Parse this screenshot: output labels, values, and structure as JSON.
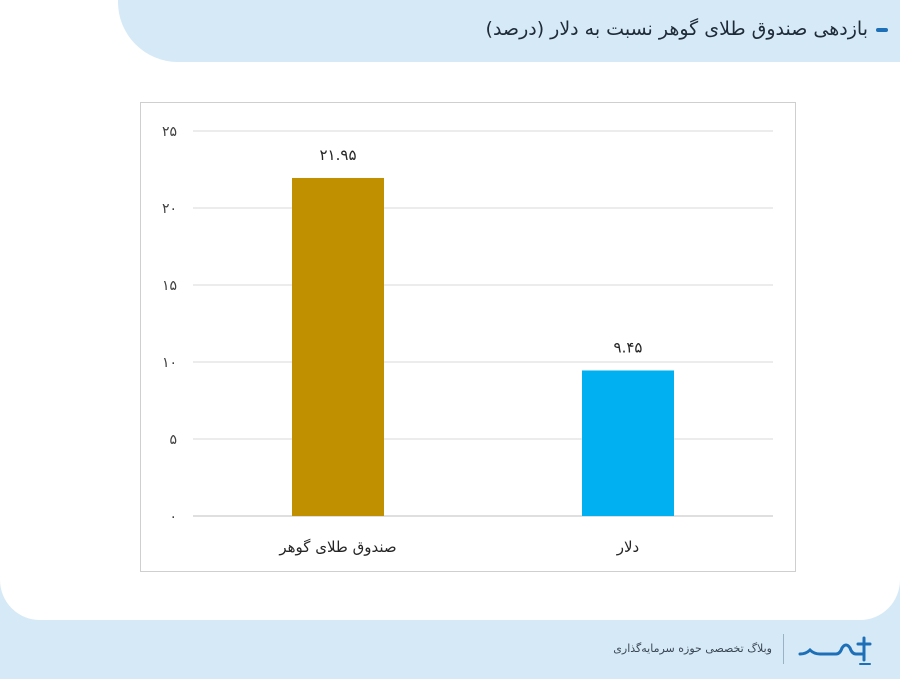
{
  "header": {
    "title": "بازدهی صندوق طلای گوهر نسبت به دلار (درصد)"
  },
  "footer": {
    "tagline": "وبلاگ تخصصی حوزه سرمایه‌گذاری",
    "logo_icon": "sarmayeh-logo"
  },
  "colors": {
    "gold_bar": "#c09000",
    "dollar_bar": "#00b0f0",
    "accent": "#1d6fb8",
    "background_band": "#d6e9f6"
  },
  "chart_data": {
    "type": "bar",
    "title": "",
    "xlabel": "",
    "ylabel": "",
    "categories": [
      "صندوق طلای گوهر",
      "دلار"
    ],
    "values": [
      21.95,
      9.45
    ],
    "value_labels": [
      "۲۱.۹۵",
      "۹.۴۵"
    ],
    "bar_colors": [
      "#c09000",
      "#00b0f0"
    ],
    "ylim": [
      0,
      25
    ],
    "yticks": [
      0,
      5,
      10,
      15,
      20,
      25
    ],
    "ytick_labels": [
      "۰",
      "۵",
      "۱۰",
      "۱۵",
      "۲۰",
      "۲۵"
    ],
    "grid": true,
    "legend": "none"
  }
}
